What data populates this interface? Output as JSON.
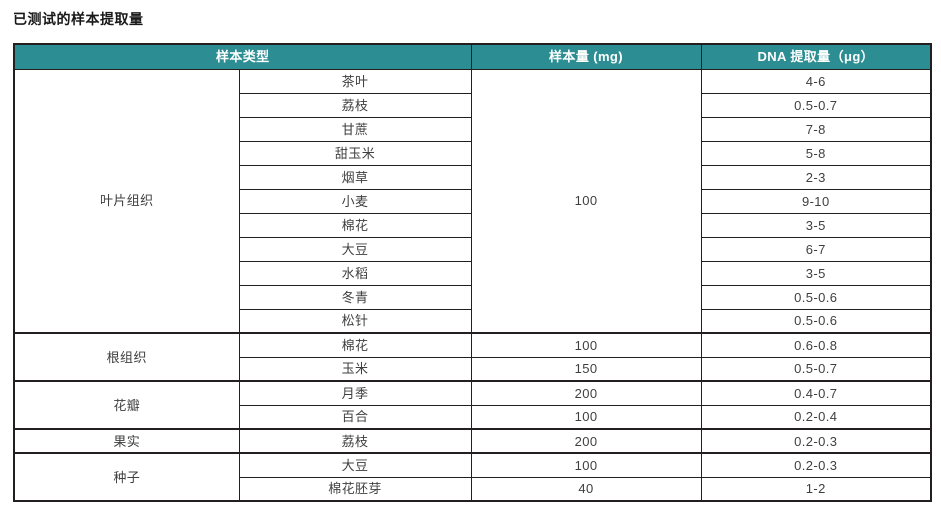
{
  "page": {
    "title": "已测试的样本提取量"
  },
  "colors": {
    "header_background": "#2C8E92",
    "header_text": "#FFFFFF",
    "body_text": "#3F3F3F",
    "border": "#231F20",
    "page_background": "#FFFFFF"
  },
  "table": {
    "headers": {
      "sample_type": "样本类型",
      "sample_amount": "样本量 (mg)",
      "dna_yield": "DNA 提取量（μg）"
    },
    "groups": [
      {
        "type": "叶片组织",
        "shared_amount": "100",
        "rows": [
          {
            "item": "茶叶",
            "dna": "4-6"
          },
          {
            "item": "荔枝",
            "dna": "0.5-0.7"
          },
          {
            "item": "甘蔗",
            "dna": "7-8"
          },
          {
            "item": "甜玉米",
            "dna": "5-8"
          },
          {
            "item": "烟草",
            "dna": "2-3"
          },
          {
            "item": "小麦",
            "dna": "9-10"
          },
          {
            "item": "棉花",
            "dna": "3-5"
          },
          {
            "item": "大豆",
            "dna": "6-7"
          },
          {
            "item": "水稻",
            "dna": "3-5"
          },
          {
            "item": "冬青",
            "dna": "0.5-0.6"
          },
          {
            "item": "松针",
            "dna": "0.5-0.6"
          }
        ]
      },
      {
        "type": "根组织",
        "rows": [
          {
            "item": "棉花",
            "amount": "100",
            "dna": "0.6-0.8"
          },
          {
            "item": "玉米",
            "amount": "150",
            "dna": "0.5-0.7"
          }
        ]
      },
      {
        "type": "花瓣",
        "rows": [
          {
            "item": "月季",
            "amount": "200",
            "dna": "0.4-0.7"
          },
          {
            "item": "百合",
            "amount": "100",
            "dna": "0.2-0.4"
          }
        ]
      },
      {
        "type": "果实",
        "rows": [
          {
            "item": "荔枝",
            "amount": "200",
            "dna": "0.2-0.3"
          }
        ]
      },
      {
        "type": "种子",
        "rows": [
          {
            "item": "大豆",
            "amount": "100",
            "dna": "0.2-0.3"
          },
          {
            "item": "棉花胚芽",
            "amount": "40",
            "dna": "1-2"
          }
        ]
      }
    ]
  }
}
